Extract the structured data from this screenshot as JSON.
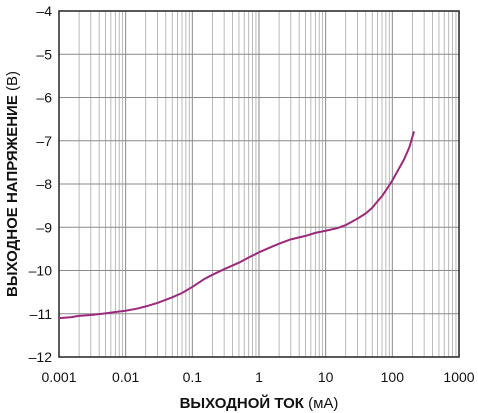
{
  "chart_data": {
    "type": "line",
    "title": "",
    "x_scale": "log",
    "xlim": [
      0.001,
      1000
    ],
    "ylim": [
      -12,
      -4
    ],
    "grid": true,
    "xlabel": {
      "main": "ВЫХОДНОЙ ТОК",
      "unit": "(мА)"
    },
    "ylabel": {
      "main": "ВЫХОДНОЕ НАПРЯЖЕНИЕ",
      "unit": "(В)"
    },
    "x_ticks": [
      {
        "value": 0.001,
        "label": "0.001"
      },
      {
        "value": 0.01,
        "label": "0.01"
      },
      {
        "value": 0.1,
        "label": "0.1"
      },
      {
        "value": 1,
        "label": "1"
      },
      {
        "value": 10,
        "label": "10"
      },
      {
        "value": 100,
        "label": "100"
      },
      {
        "value": 1000,
        "label": "1000"
      }
    ],
    "y_ticks": [
      {
        "value": -4,
        "label": "–4"
      },
      {
        "value": -5,
        "label": "–5"
      },
      {
        "value": -6,
        "label": "–6"
      },
      {
        "value": -7,
        "label": "–7"
      },
      {
        "value": -8,
        "label": "–8"
      },
      {
        "value": -9,
        "label": "–9"
      },
      {
        "value": -10,
        "label": "–10"
      },
      {
        "value": -11,
        "label": "–11"
      },
      {
        "value": -12,
        "label": "–12"
      }
    ],
    "series": [
      {
        "color": "#9b2a7d",
        "points": [
          [
            0.001,
            -11.1
          ],
          [
            0.0015,
            -11.08
          ],
          [
            0.002,
            -11.05
          ],
          [
            0.003,
            -11.03
          ],
          [
            0.005,
            -10.99
          ],
          [
            0.007,
            -10.96
          ],
          [
            0.01,
            -10.93
          ],
          [
            0.015,
            -10.88
          ],
          [
            0.02,
            -10.83
          ],
          [
            0.03,
            -10.75
          ],
          [
            0.05,
            -10.62
          ],
          [
            0.07,
            -10.52
          ],
          [
            0.1,
            -10.38
          ],
          [
            0.15,
            -10.2
          ],
          [
            0.2,
            -10.1
          ],
          [
            0.3,
            -9.97
          ],
          [
            0.5,
            -9.82
          ],
          [
            0.7,
            -9.7
          ],
          [
            1,
            -9.58
          ],
          [
            1.5,
            -9.46
          ],
          [
            2,
            -9.38
          ],
          [
            3,
            -9.28
          ],
          [
            5,
            -9.2
          ],
          [
            7,
            -9.13
          ],
          [
            10,
            -9.08
          ],
          [
            15,
            -9.02
          ],
          [
            20,
            -8.95
          ],
          [
            30,
            -8.8
          ],
          [
            40,
            -8.68
          ],
          [
            50,
            -8.55
          ],
          [
            60,
            -8.4
          ],
          [
            70,
            -8.28
          ],
          [
            80,
            -8.15
          ],
          [
            100,
            -7.92
          ],
          [
            120,
            -7.7
          ],
          [
            150,
            -7.43
          ],
          [
            180,
            -7.15
          ],
          [
            210,
            -6.8
          ]
        ]
      }
    ]
  }
}
